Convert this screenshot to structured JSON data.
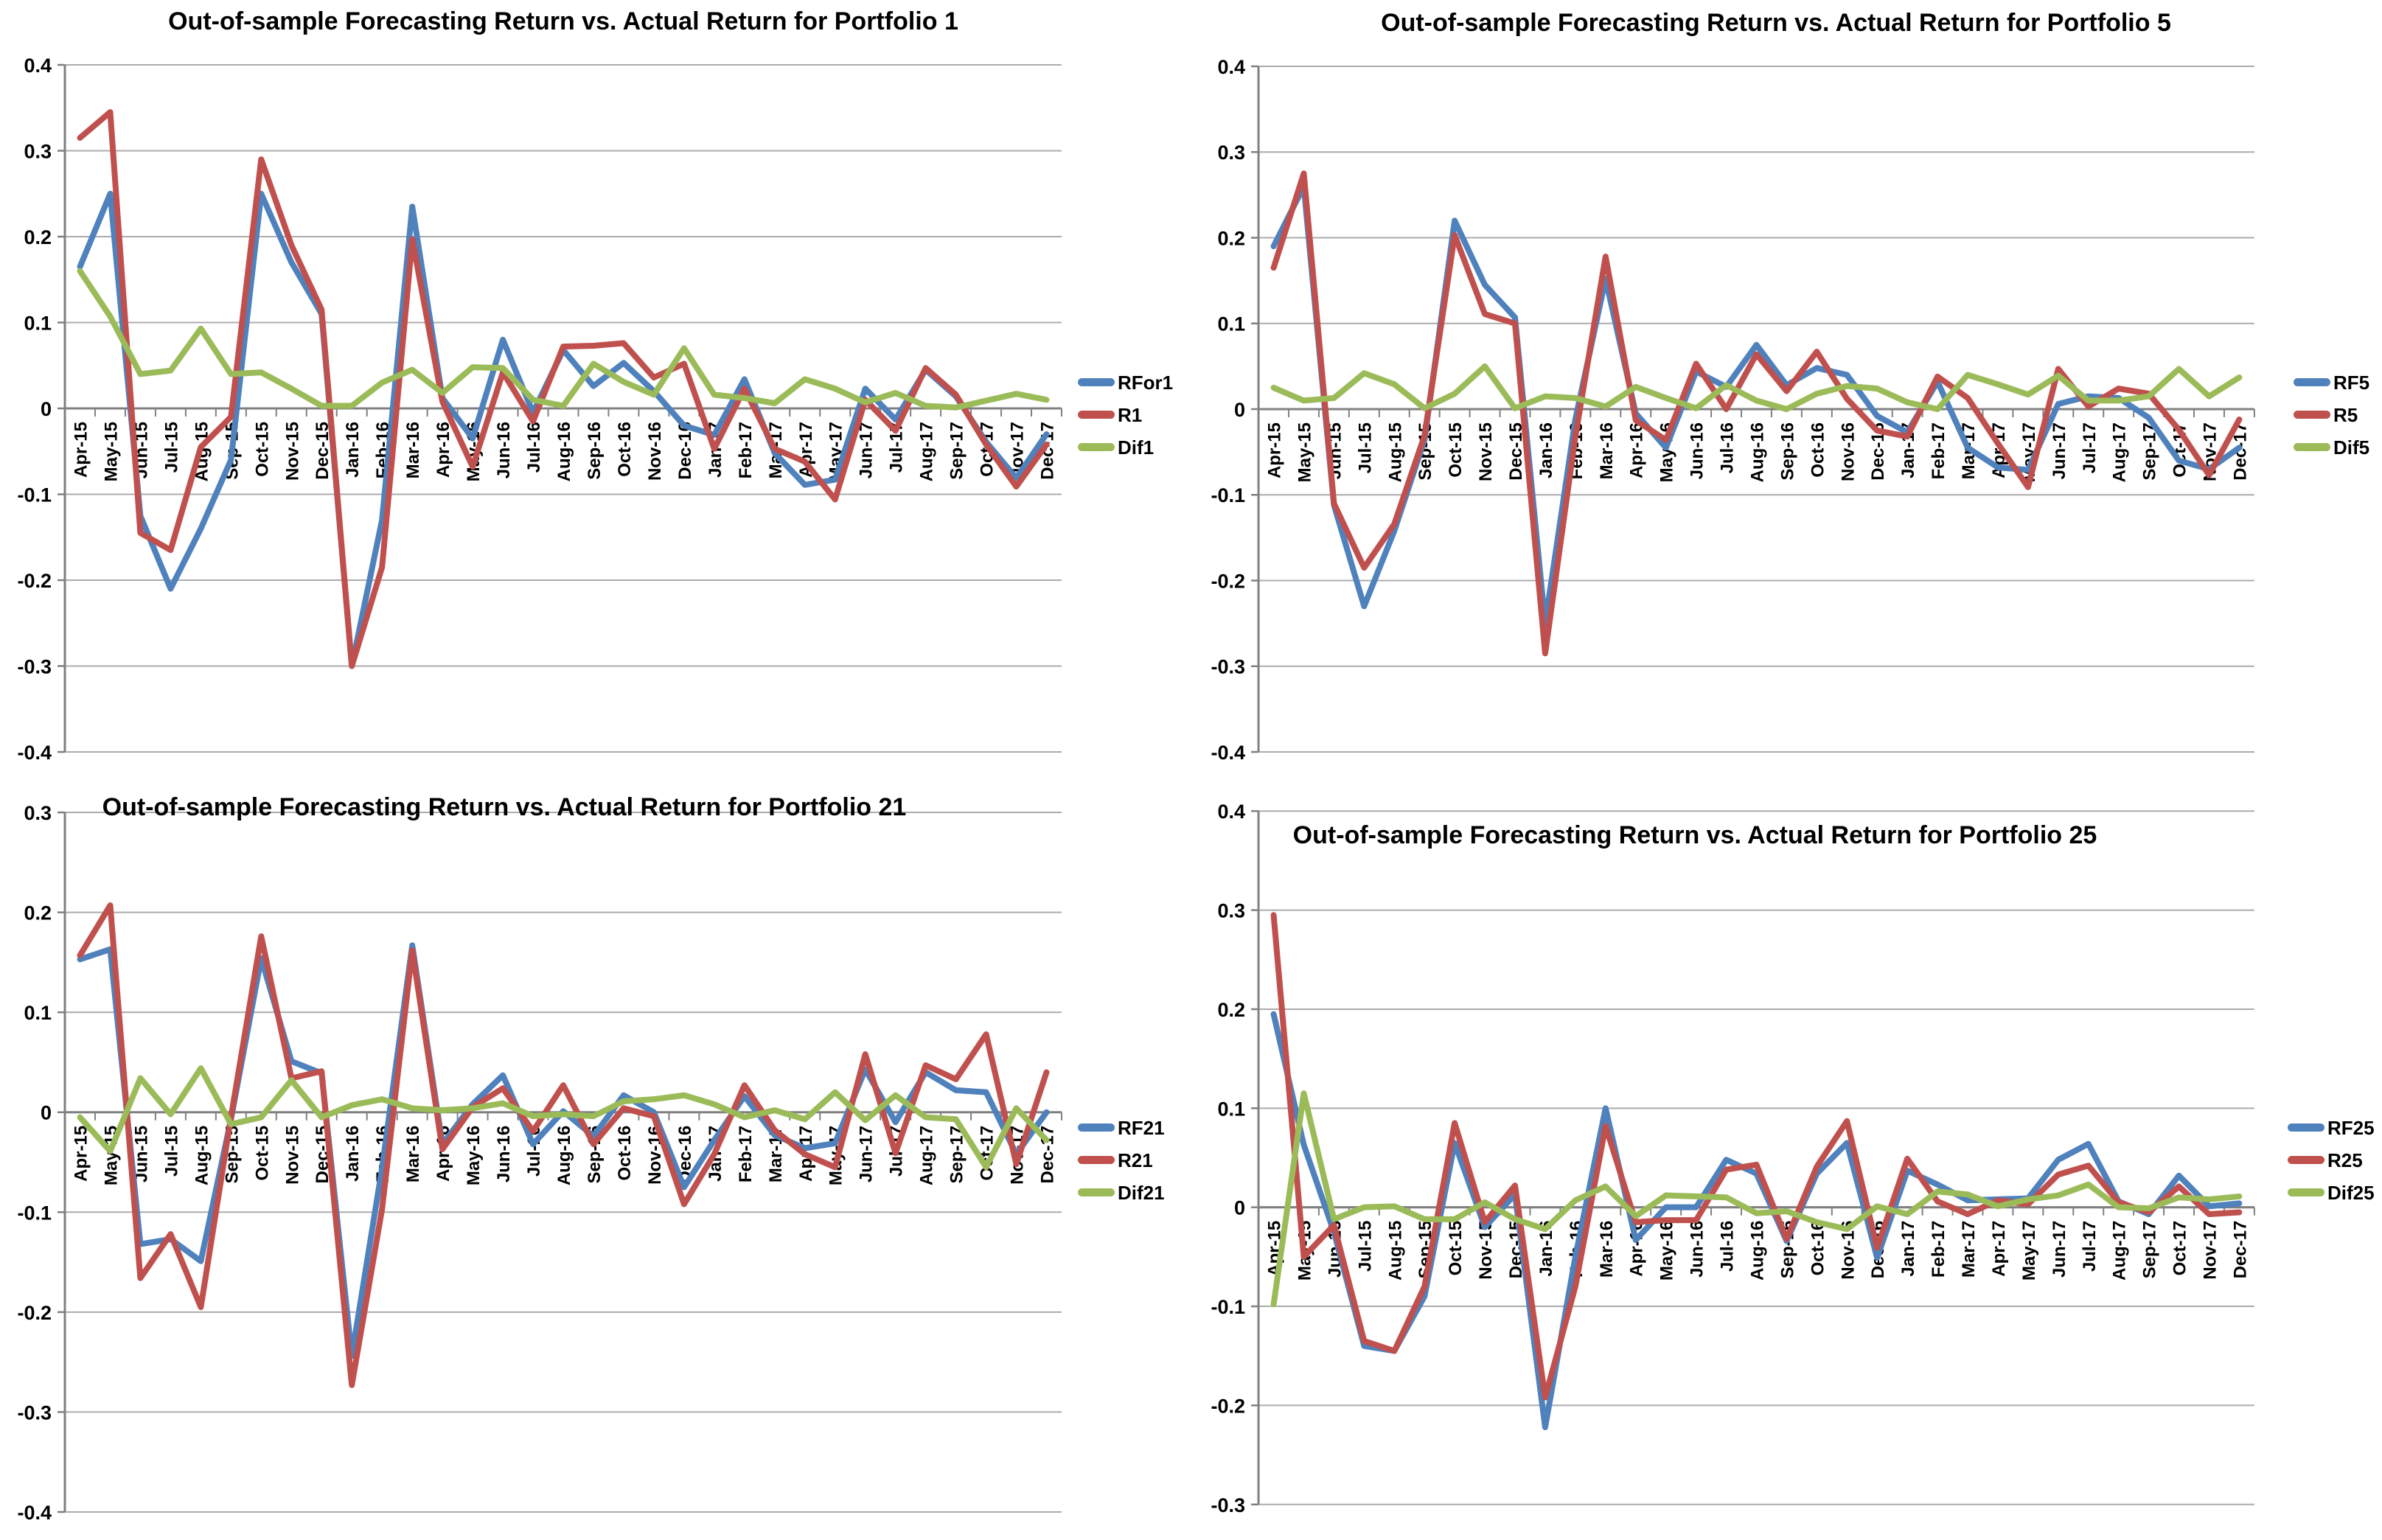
{
  "page": {
    "background": "#ffffff"
  },
  "colors": {
    "blue": "#4F81BD",
    "red": "#C0504D",
    "green": "#9BBB59",
    "grid": "#ACACAC",
    "axis": "#808080",
    "text": "#000000"
  },
  "months": [
    "Apr-15",
    "May-15",
    "Jun-15",
    "Jul-15",
    "Aug-15",
    "Sep-15",
    "Oct-15",
    "Nov-15",
    "Dec-15",
    "Jan-16",
    "Feb-16",
    "Mar-16",
    "Apr-16",
    "May-16",
    "Jun-16",
    "Jul-16",
    "Aug-16",
    "Sep-16",
    "Oct-16",
    "Nov-16",
    "Dec-16",
    "Jan-17",
    "Feb-17",
    "Mar-17",
    "Apr-17",
    "May-17",
    "Jun-17",
    "Jul-17",
    "Aug-17",
    "Sep-17",
    "Oct-17",
    "Nov-17",
    "Dec-17"
  ],
  "chart_data": [
    {
      "type": "line",
      "title": "Out-of-sample Forecasting Return vs. Actual Return for Portfolio 1",
      "xlabel": "",
      "ylabel": "",
      "ylim": [
        -0.4,
        0.4
      ],
      "ytick_step": 0.1,
      "ytick_labels": [
        "0.4",
        "0.3",
        "0.2",
        "0.1",
        "0",
        "-0.1",
        "-0.2",
        "-0.3",
        "-0.4"
      ],
      "grid": true,
      "legend_position": "right",
      "series": [
        {
          "name": "RFor1",
          "color_key": "blue",
          "values": [
            0.165,
            0.25,
            -0.125,
            -0.21,
            -0.14,
            -0.06,
            0.25,
            0.17,
            0.11,
            -0.3,
            -0.13,
            0.235,
            0.012,
            -0.035,
            0.08,
            -0.005,
            0.068,
            0.026,
            0.053,
            0.02,
            -0.02,
            -0.031,
            0.034,
            -0.052,
            -0.089,
            -0.083,
            0.023,
            -0.013,
            0.045,
            0.014,
            -0.039,
            -0.081,
            -0.03
          ]
        },
        {
          "name": "R1",
          "color_key": "red",
          "values": [
            0.315,
            0.345,
            -0.145,
            -0.165,
            -0.045,
            -0.01,
            0.29,
            0.19,
            0.115,
            -0.3,
            -0.185,
            0.197,
            0.008,
            -0.068,
            0.042,
            -0.015,
            0.072,
            0.073,
            0.076,
            0.036,
            0.052,
            -0.047,
            0.023,
            -0.047,
            -0.062,
            -0.106,
            0.01,
            -0.026,
            0.047,
            0.016,
            -0.042,
            -0.091,
            -0.042
          ]
        },
        {
          "name": "Dif1",
          "color_key": "green",
          "values": [
            0.16,
            0.107,
            0.04,
            0.044,
            0.093,
            0.04,
            0.042,
            0.023,
            0.003,
            0.003,
            0.03,
            0.045,
            0.018,
            0.048,
            0.047,
            0.01,
            0.003,
            0.052,
            0.031,
            0.016,
            0.07,
            0.016,
            0.012,
            0.006,
            0.034,
            0.023,
            0.007,
            0.018,
            0.003,
            0.001,
            0.009,
            0.017,
            0.01
          ]
        }
      ]
    },
    {
      "type": "line",
      "title": "Out-of-sample Forecasting Return vs. Actual Return for Portfolio 5",
      "xlabel": "",
      "ylabel": "",
      "ylim": [
        -0.4,
        0.4
      ],
      "ytick_step": 0.1,
      "ytick_labels": [
        "0.4",
        "0.3",
        "0.2",
        "0.1",
        "0",
        "-0.1",
        "-0.2",
        "-0.3",
        "-0.4"
      ],
      "grid": true,
      "legend_position": "right",
      "series": [
        {
          "name": "RF5",
          "color_key": "blue",
          "values": [
            0.19,
            0.26,
            -0.112,
            -0.23,
            -0.142,
            -0.036,
            0.22,
            0.145,
            0.107,
            -0.25,
            -0.012,
            0.152,
            -0.005,
            -0.045,
            0.044,
            0.026,
            0.075,
            0.028,
            0.048,
            0.04,
            -0.008,
            -0.027,
            0.032,
            -0.045,
            -0.068,
            -0.071,
            0.006,
            0.015,
            0.013,
            -0.01,
            -0.06,
            -0.07,
            -0.045
          ]
        },
        {
          "name": "R5",
          "color_key": "red",
          "values": [
            0.165,
            0.275,
            -0.11,
            -0.185,
            -0.134,
            -0.031,
            0.203,
            0.111,
            0.1,
            -0.285,
            -0.032,
            0.178,
            -0.013,
            -0.036,
            0.053,
            0.0,
            0.064,
            0.021,
            0.067,
            0.012,
            -0.025,
            -0.032,
            0.038,
            0.013,
            -0.04,
            -0.091,
            0.047,
            0.003,
            0.024,
            0.018,
            -0.024,
            -0.077,
            -0.012
          ]
        },
        {
          "name": "Dif5",
          "color_key": "green",
          "values": [
            0.025,
            0.01,
            0.013,
            0.042,
            0.029,
            0.001,
            0.018,
            0.05,
            0.001,
            0.015,
            0.013,
            0.003,
            0.026,
            0.013,
            0.001,
            0.028,
            0.01,
            0.0,
            0.018,
            0.027,
            0.024,
            0.008,
            0.0,
            0.04,
            0.029,
            0.017,
            0.039,
            0.01,
            0.01,
            0.015,
            0.047,
            0.015,
            0.037
          ]
        }
      ]
    },
    {
      "type": "line",
      "title": "Out-of-sample Forecasting Return vs. Actual Return for Portfolio 21",
      "xlabel": "",
      "ylabel": "",
      "ylim": [
        -0.4,
        0.3
      ],
      "ytick_step": 0.1,
      "ytick_labels": [
        "0.3",
        "0.2",
        "0.1",
        "0",
        "-0.1",
        "-0.2",
        "-0.3",
        "-0.4"
      ],
      "grid": true,
      "legend_position": "right",
      "series": [
        {
          "name": "RF21",
          "color_key": "blue",
          "values": [
            0.153,
            0.163,
            -0.132,
            -0.127,
            -0.149,
            -0.007,
            0.154,
            0.051,
            0.039,
            -0.244,
            -0.056,
            0.167,
            -0.032,
            0.008,
            0.037,
            -0.032,
            0.001,
            -0.024,
            0.017,
            0.0,
            -0.075,
            -0.028,
            0.016,
            -0.023,
            -0.036,
            -0.031,
            0.043,
            -0.01,
            0.04,
            0.022,
            0.02,
            -0.042,
            0.0
          ]
        },
        {
          "name": "R21",
          "color_key": "red",
          "values": [
            0.157,
            0.207,
            -0.166,
            -0.122,
            -0.195,
            -0.005,
            0.176,
            0.034,
            0.041,
            -0.273,
            -0.097,
            0.162,
            -0.037,
            0.005,
            0.024,
            -0.019,
            0.027,
            -0.032,
            0.004,
            -0.004,
            -0.092,
            -0.042,
            0.027,
            -0.018,
            -0.042,
            -0.055,
            0.058,
            -0.041,
            0.047,
            0.033,
            0.078,
            -0.052,
            0.04
          ]
        },
        {
          "name": "Dif21",
          "color_key": "green",
          "values": [
            -0.005,
            -0.039,
            0.034,
            -0.002,
            0.044,
            -0.012,
            -0.005,
            0.032,
            -0.005,
            0.007,
            0.013,
            0.004,
            0.002,
            0.004,
            0.009,
            -0.004,
            -0.002,
            -0.004,
            0.011,
            0.013,
            0.017,
            0.008,
            -0.005,
            0.002,
            -0.007,
            0.02,
            -0.008,
            0.017,
            -0.005,
            -0.007,
            -0.055,
            0.004,
            -0.028
          ]
        }
      ]
    },
    {
      "type": "line",
      "title": "Out-of-sample Forecasting Return vs. Actual Return for Portfolio 25",
      "xlabel": "",
      "ylabel": "",
      "ylim": [
        -0.3,
        0.4
      ],
      "ytick_step": 0.1,
      "ytick_labels": [
        "0.4",
        "0.3",
        "0.2",
        "0.1",
        "0",
        "-0.1",
        "-0.2",
        "-0.3"
      ],
      "grid": true,
      "legend_position": "right",
      "series": [
        {
          "name": "RF25",
          "color_key": "blue",
          "values": [
            0.195,
            0.063,
            -0.025,
            -0.14,
            -0.145,
            -0.09,
            0.065,
            -0.02,
            0.013,
            -0.222,
            -0.05,
            0.1,
            -0.033,
            0.0,
            0.0,
            0.048,
            0.034,
            -0.034,
            0.034,
            0.065,
            -0.051,
            0.037,
            0.023,
            0.007,
            0.008,
            0.009,
            0.048,
            0.064,
            0.006,
            -0.007,
            0.032,
            0.001,
            0.004
          ]
        },
        {
          "name": "R25",
          "color_key": "red",
          "values": [
            0.295,
            -0.05,
            -0.018,
            -0.135,
            -0.145,
            -0.08,
            0.085,
            -0.015,
            0.022,
            -0.192,
            -0.08,
            0.082,
            -0.015,
            -0.013,
            -0.013,
            0.038,
            0.043,
            -0.032,
            0.041,
            0.087,
            -0.041,
            0.049,
            0.006,
            -0.007,
            0.007,
            0.003,
            0.033,
            0.042,
            0.005,
            -0.005,
            0.021,
            -0.007,
            -0.005
          ]
        },
        {
          "name": "Dif25",
          "color_key": "green",
          "values": [
            -0.098,
            0.115,
            -0.012,
            0.0,
            0.001,
            -0.012,
            -0.012,
            0.005,
            -0.012,
            -0.022,
            0.007,
            0.021,
            -0.009,
            0.012,
            0.011,
            0.01,
            -0.006,
            -0.004,
            -0.015,
            -0.022,
            0.001,
            -0.007,
            0.016,
            0.013,
            0.001,
            0.008,
            0.012,
            0.023,
            0.0,
            -0.001,
            0.01,
            0.008,
            0.011
          ]
        }
      ]
    }
  ]
}
